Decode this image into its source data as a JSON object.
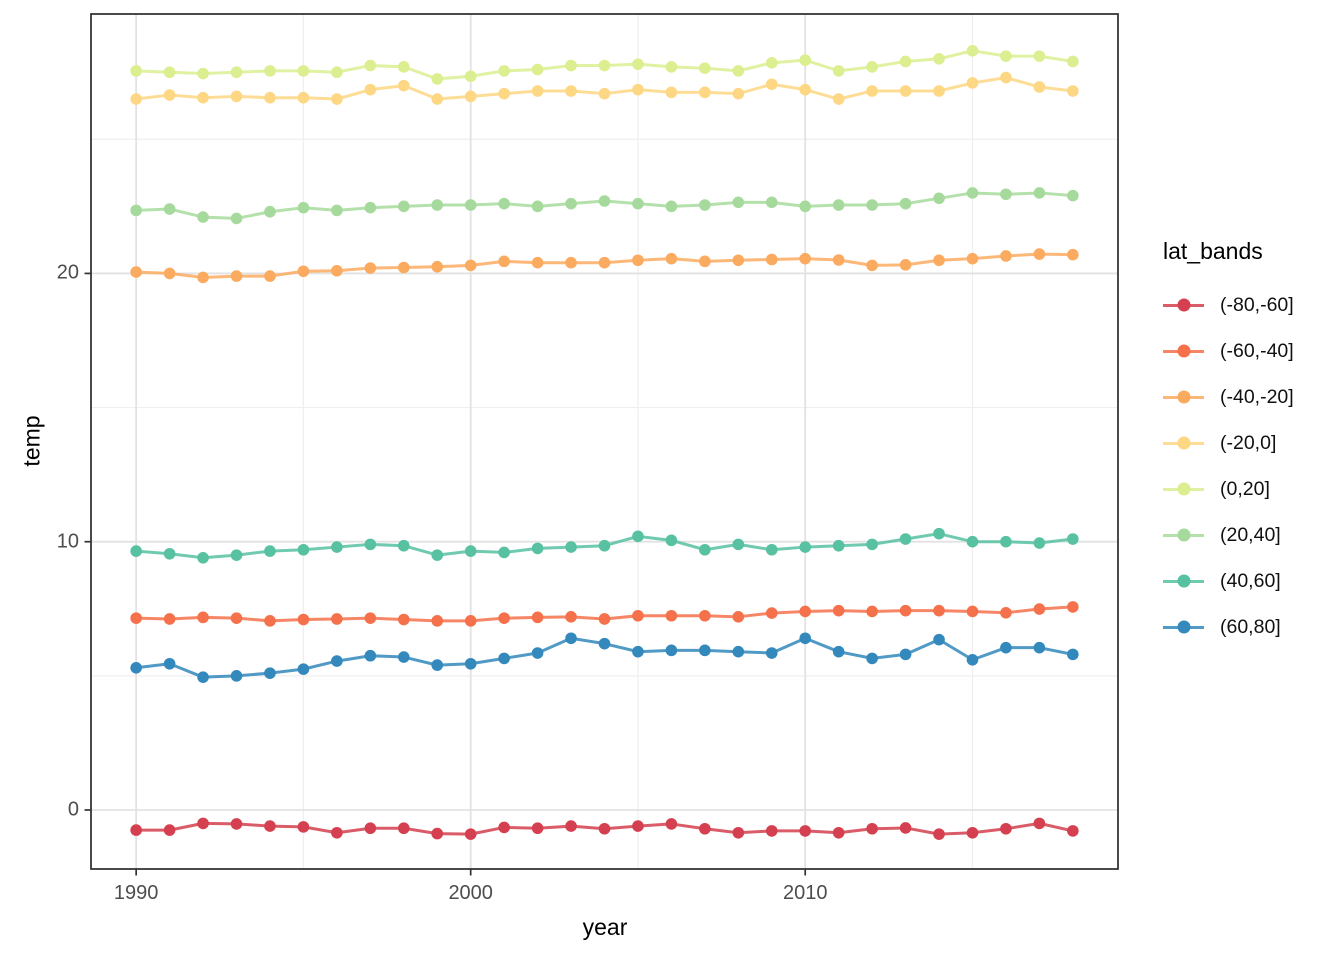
{
  "figure": {
    "xlabel": "year",
    "ylabel": "temp",
    "legend_title": "lat_bands"
  },
  "chart_data": {
    "type": "line",
    "title": "",
    "xlabel": "year",
    "ylabel": "temp",
    "grid": true,
    "legend_position": "right",
    "legend_title": "lat_bands",
    "x": [
      1990,
      1991,
      1992,
      1993,
      1994,
      1995,
      1996,
      1997,
      1998,
      1999,
      2000,
      2001,
      2002,
      2003,
      2004,
      2005,
      2006,
      2007,
      2008,
      2009,
      2010,
      2011,
      2012,
      2013,
      2014,
      2015,
      2016,
      2017,
      2018
    ],
    "x_ticks": [
      1990,
      2000,
      2010
    ],
    "x_minor_ticks": [
      1995,
      2005,
      2015
    ],
    "y_ticks": [
      0,
      10,
      20
    ],
    "y_minor_ticks": [
      5,
      15,
      25
    ],
    "xlim": [
      1988.65,
      2019.35
    ],
    "ylim": [
      -2.2,
      29.67
    ],
    "panel_border_color": "#2b2b2b",
    "grid_major_color": "#e2e2e2",
    "grid_minor_color": "#efefef",
    "tick_color": "#333333",
    "axis_text_color": "#4d4d4d",
    "series": [
      {
        "name": "(-80,-60]",
        "color": "#d4404f",
        "values": [
          -0.75,
          -0.75,
          -0.5,
          -0.52,
          -0.6,
          -0.63,
          -0.85,
          -0.68,
          -0.68,
          -0.88,
          -0.9,
          -0.65,
          -0.68,
          -0.6,
          -0.7,
          -0.6,
          -0.52,
          -0.7,
          -0.85,
          -0.78,
          -0.78,
          -0.85,
          -0.7,
          -0.67,
          -0.9,
          -0.85,
          -0.7,
          -0.5,
          -0.78
        ]
      },
      {
        "name": "(-60,-40]",
        "color": "#f4714b",
        "values": [
          7.15,
          7.12,
          7.18,
          7.15,
          7.05,
          7.1,
          7.12,
          7.15,
          7.1,
          7.05,
          7.05,
          7.15,
          7.18,
          7.2,
          7.12,
          7.24,
          7.24,
          7.24,
          7.2,
          7.34,
          7.4,
          7.43,
          7.4,
          7.43,
          7.43,
          7.4,
          7.35,
          7.49,
          7.57
        ]
      },
      {
        "name": "(-40,-20]",
        "color": "#fbab60",
        "values": [
          20.05,
          20.0,
          19.85,
          19.9,
          19.9,
          20.08,
          20.1,
          20.2,
          20.22,
          20.25,
          20.3,
          20.45,
          20.4,
          20.4,
          20.4,
          20.49,
          20.55,
          20.45,
          20.49,
          20.52,
          20.55,
          20.5,
          20.3,
          20.32,
          20.49,
          20.55,
          20.65,
          20.72,
          20.7
        ]
      },
      {
        "name": "(-20,0]",
        "color": "#fdd784",
        "values": [
          26.5,
          26.65,
          26.55,
          26.6,
          26.55,
          26.55,
          26.5,
          26.85,
          27.0,
          26.5,
          26.6,
          26.7,
          26.8,
          26.8,
          26.7,
          26.85,
          26.75,
          26.75,
          26.7,
          27.05,
          26.85,
          26.5,
          26.8,
          26.8,
          26.8,
          27.1,
          27.3,
          26.95,
          26.8
        ]
      },
      {
        "name": "(0,20]",
        "color": "#dbee90",
        "values": [
          27.55,
          27.5,
          27.45,
          27.5,
          27.55,
          27.55,
          27.5,
          27.75,
          27.7,
          27.25,
          27.35,
          27.55,
          27.6,
          27.75,
          27.75,
          27.8,
          27.7,
          27.65,
          27.55,
          27.85,
          27.95,
          27.55,
          27.7,
          27.9,
          28.0,
          28.3,
          28.1,
          28.1,
          27.9
        ]
      },
      {
        "name": "(20,40]",
        "color": "#a6da9c",
        "values": [
          22.35,
          22.4,
          22.1,
          22.05,
          22.3,
          22.45,
          22.35,
          22.45,
          22.5,
          22.55,
          22.55,
          22.6,
          22.5,
          22.6,
          22.7,
          22.6,
          22.5,
          22.55,
          22.65,
          22.65,
          22.5,
          22.55,
          22.55,
          22.6,
          22.8,
          23.0,
          22.95,
          23.0,
          22.9
        ]
      },
      {
        "name": "(40,60]",
        "color": "#57c1a2",
        "values": [
          9.65,
          9.55,
          9.4,
          9.5,
          9.65,
          9.7,
          9.8,
          9.9,
          9.85,
          9.5,
          9.65,
          9.6,
          9.75,
          9.8,
          9.85,
          10.2,
          10.05,
          9.7,
          9.9,
          9.7,
          9.8,
          9.85,
          9.9,
          10.1,
          10.3,
          10.0,
          10.0,
          9.95,
          10.1
        ]
      },
      {
        "name": "(60,80]",
        "color": "#3388bc",
        "values": [
          5.3,
          5.45,
          4.95,
          5.0,
          5.1,
          5.25,
          5.55,
          5.75,
          5.7,
          5.4,
          5.45,
          5.65,
          5.85,
          6.4,
          6.2,
          5.9,
          5.95,
          5.95,
          5.9,
          5.85,
          6.4,
          5.9,
          5.65,
          5.8,
          6.35,
          5.6,
          6.05,
          6.05,
          5.8
        ]
      }
    ]
  }
}
